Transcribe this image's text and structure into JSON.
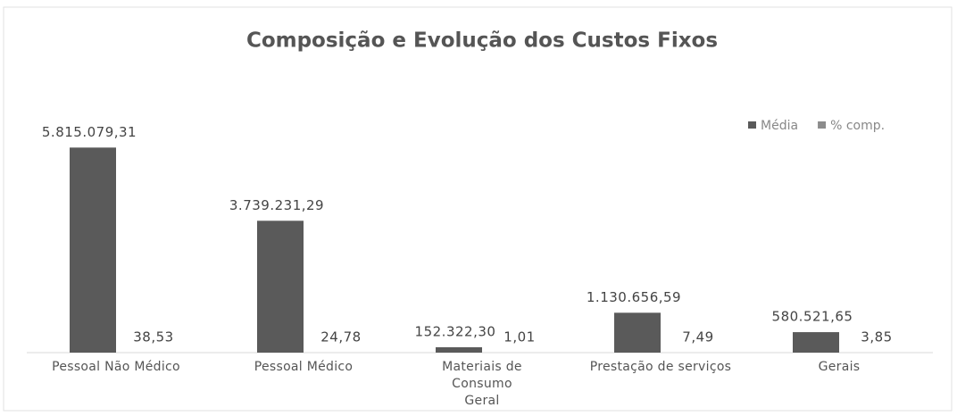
{
  "chart_data": {
    "type": "bar",
    "title": "Composição e Evolução dos Custos Fixos",
    "categories": [
      "Pessoal Não Médico",
      "Pessoal Médico",
      "Materiais de Consumo Geral",
      "Prestação de serviços",
      "Gerais"
    ],
    "series": [
      {
        "name": "Média",
        "color": "#5a5a5a",
        "values": [
          5815079.31,
          3739231.29,
          152322.3,
          1130656.59,
          580521.65
        ],
        "value_labels": [
          "5.815.079,31",
          "3.739.231,29",
          "152.322,30",
          "1.130.656,59",
          "580.521,65"
        ]
      },
      {
        "name": "% comp.",
        "color": "#8c8c8c",
        "values": [
          38.53,
          24.78,
          1.01,
          7.49,
          3.85
        ],
        "value_labels": [
          "38,53",
          "24,78",
          "1,01",
          "7,49",
          "3,85"
        ]
      }
    ],
    "ylim": [
      0,
      6000000
    ],
    "legend": "top-right"
  }
}
